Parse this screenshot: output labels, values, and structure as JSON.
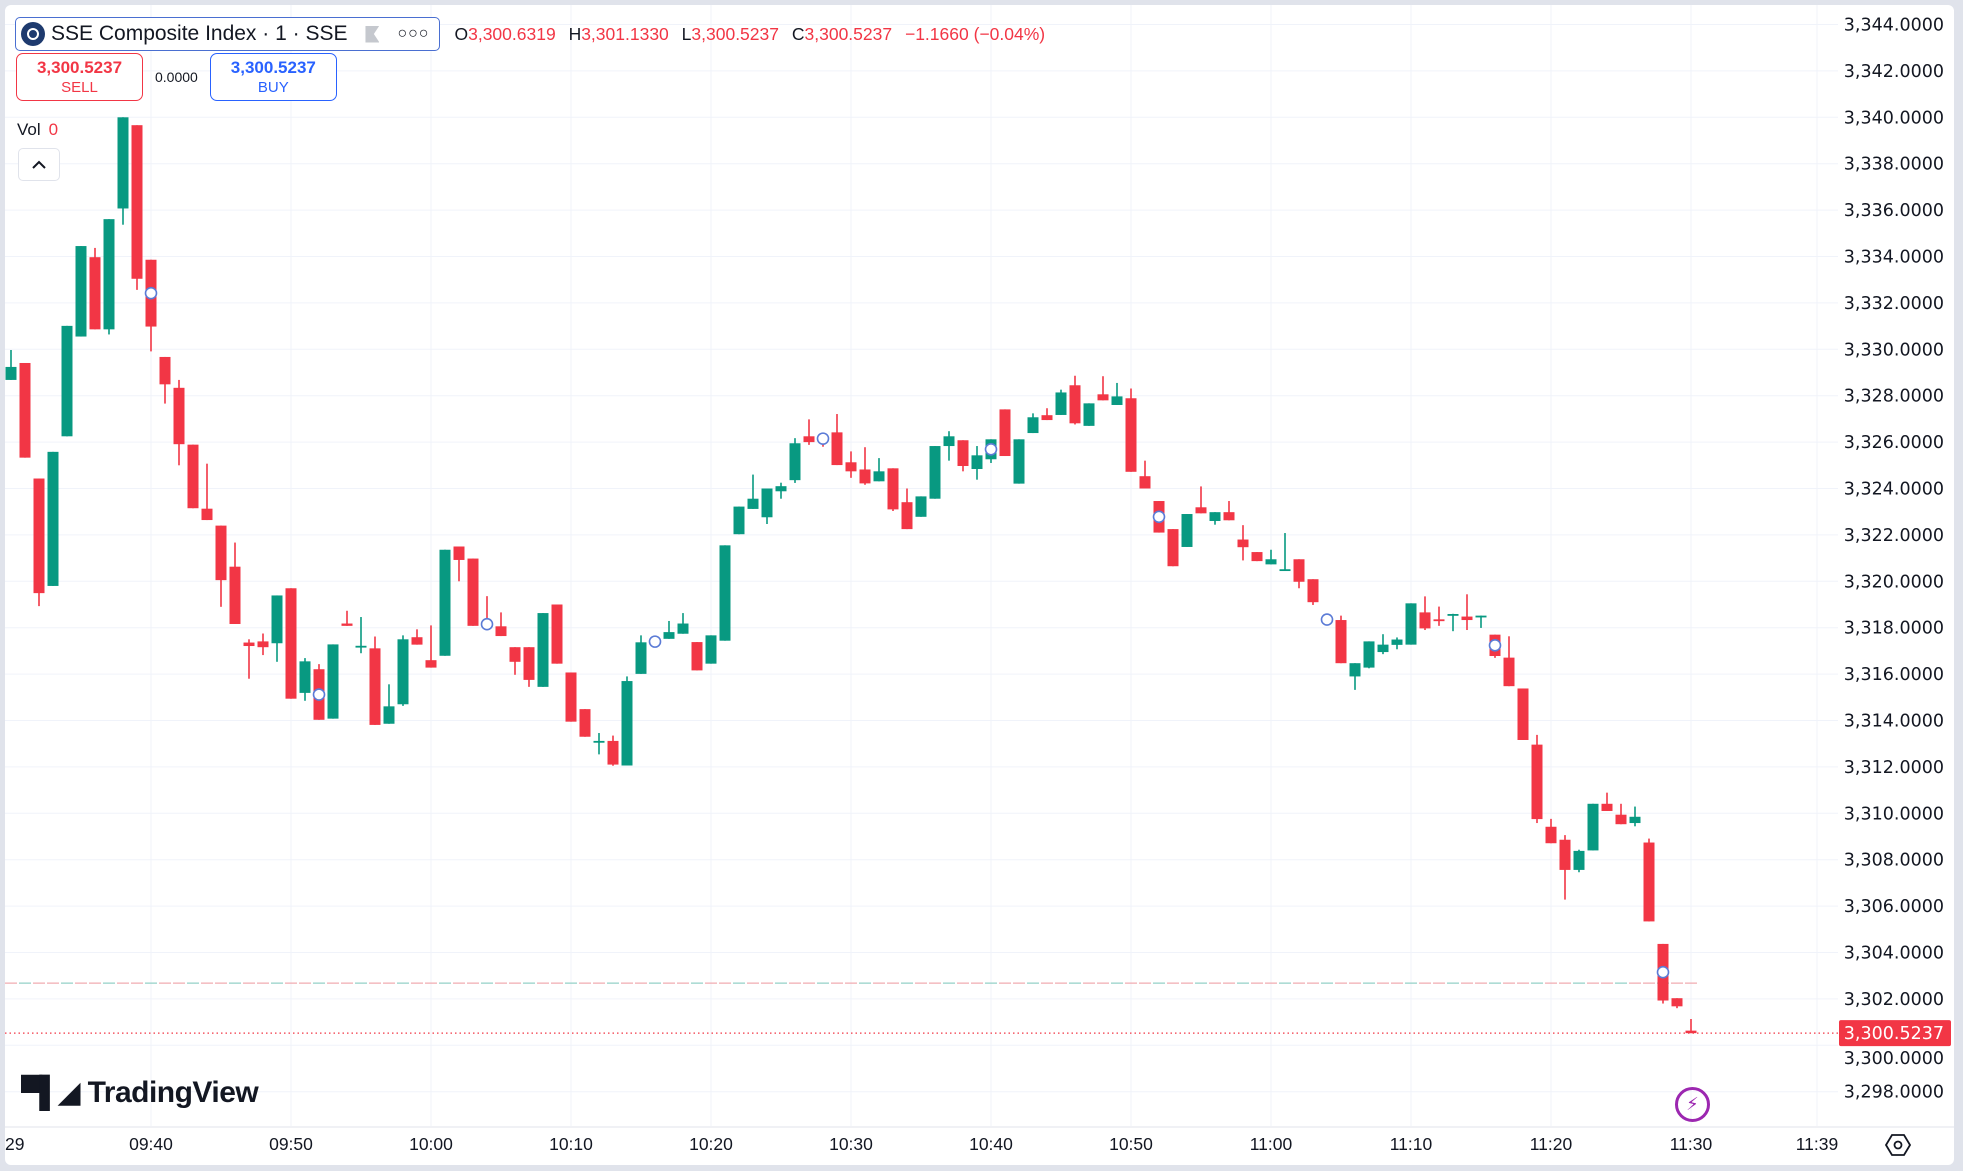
{
  "symbol": {
    "title": "SSE Composite Index · 1 · SSE",
    "logo": "sse-logo-icon",
    "flag_icon": "flag-icon",
    "more_icon": "more-dots-icon"
  },
  "ohlc": {
    "o_label": "O",
    "o": "3,300.6319",
    "h_label": "H",
    "h": "3,301.1330",
    "l_label": "L",
    "l": "3,300.5237",
    "c_label": "C",
    "c": "3,300.5237",
    "change": "−1.1660 (−0.04%)"
  },
  "trade": {
    "sell_price": "3,300.5237",
    "sell_label": "SELL",
    "spread": "0.0000",
    "buy_price": "3,300.5237",
    "buy_label": "BUY"
  },
  "volume": {
    "label": "Vol",
    "value": "0"
  },
  "collapse_icon": "chevron-up-icon",
  "brand": {
    "mark": "17",
    "name": "TradingView"
  },
  "colors": {
    "up": "#089981",
    "down": "#f23645",
    "accent": "#2962ff",
    "marker": "#5b7bd6",
    "lightning": "#9c27b0"
  },
  "chart_data": {
    "type": "candlestick",
    "interval": "1",
    "ylim": [
      3297,
      3345
    ],
    "yticks": [
      "3,344.0000",
      "3,342.0000",
      "3,340.0000",
      "3,338.0000",
      "3,336.0000",
      "3,334.0000",
      "3,332.0000",
      "3,330.0000",
      "3,328.0000",
      "3,326.0000",
      "3,324.0000",
      "3,322.0000",
      "3,320.0000",
      "3,318.0000",
      "3,316.0000",
      "3,314.0000",
      "3,312.0000",
      "3,310.0000",
      "3,308.0000",
      "3,306.0000",
      "3,304.0000",
      "3,302.0000",
      "3,300.0000",
      "3,298.0000"
    ],
    "xticks": [
      "29",
      "09:40",
      "09:50",
      "10:00",
      "10:10",
      "10:20",
      "10:30",
      "10:40",
      "10:50",
      "11:00",
      "11:10",
      "11:20",
      "11:30",
      "11:39"
    ],
    "last_price": "3,300.5237",
    "reference_line": 3302.68,
    "markers": [
      "09:40",
      "09:52",
      "10:04",
      "10:16",
      "10:28",
      "10:40",
      "10:52",
      "11:04",
      "11:16",
      "11:28"
    ],
    "candles": [
      [
        "09:30",
        3328.68,
        3329.97,
        3328.68,
        3329.24
      ],
      [
        "09:31",
        3329.41,
        3329.41,
        3325.33,
        3325.33
      ],
      [
        "09:32",
        3324.43,
        3324.43,
        3318.93,
        3319.49
      ],
      [
        "09:33",
        3319.8,
        3325.58,
        3319.8,
        3325.58
      ],
      [
        "09:34",
        3326.25,
        3331.01,
        3326.25,
        3331.01
      ],
      [
        "09:35",
        3330.55,
        3334.45,
        3330.55,
        3334.45
      ],
      [
        "09:36",
        3333.97,
        3334.37,
        3330.86,
        3330.86
      ],
      [
        "09:37",
        3330.86,
        3335.61,
        3330.64,
        3335.61
      ],
      [
        "09:38",
        3336.07,
        3340.0,
        3335.37,
        3340.0
      ],
      [
        "09:39",
        3339.66,
        3339.66,
        3332.56,
        3333.04
      ],
      [
        "09:40",
        3333.86,
        3333.86,
        3329.91,
        3330.98
      ],
      [
        "09:41",
        3329.67,
        3329.67,
        3327.66,
        3328.49
      ],
      [
        "09:42",
        3328.34,
        3328.68,
        3325.0,
        3325.91
      ],
      [
        "09:43",
        3325.89,
        3325.89,
        3323.15,
        3323.15
      ],
      [
        "09:44",
        3323.13,
        3325.07,
        3322.64,
        3322.64
      ],
      [
        "09:45",
        3322.4,
        3322.4,
        3318.9,
        3320.05
      ],
      [
        "09:46",
        3320.63,
        3321.67,
        3318.16,
        3318.16
      ],
      [
        "09:47",
        3317.36,
        3317.5,
        3315.8,
        3317.21
      ],
      [
        "09:48",
        3317.41,
        3317.75,
        3316.82,
        3317.16
      ],
      [
        "09:49",
        3317.33,
        3319.39,
        3316.53,
        3319.39
      ],
      [
        "09:50",
        3319.7,
        3319.7,
        3314.94,
        3314.94
      ],
      [
        "09:51",
        3315.19,
        3316.69,
        3314.85,
        3316.55
      ],
      [
        "09:52",
        3316.21,
        3316.43,
        3314.03,
        3314.03
      ],
      [
        "09:53",
        3314.08,
        3317.28,
        3314.08,
        3317.28
      ],
      [
        "09:54",
        3318.18,
        3318.73,
        3318.08,
        3318.08
      ],
      [
        "09:55",
        3317.18,
        3318.46,
        3316.9,
        3317.22
      ],
      [
        "09:56",
        3317.11,
        3317.62,
        3313.81,
        3313.81
      ],
      [
        "09:57",
        3313.86,
        3315.56,
        3313.86,
        3314.61
      ],
      [
        "09:58",
        3314.7,
        3317.67,
        3314.63,
        3317.5
      ],
      [
        "09:59",
        3317.59,
        3317.93,
        3317.27,
        3317.27
      ],
      [
        "10:00",
        3316.6,
        3318.1,
        3316.28,
        3316.28
      ],
      [
        "10:01",
        3316.79,
        3321.36,
        3316.79,
        3321.36
      ],
      [
        "10:02",
        3321.5,
        3321.5,
        3320.0,
        3320.92
      ],
      [
        "10:03",
        3320.98,
        3320.98,
        3318.08,
        3318.08
      ],
      [
        "10:04",
        3318.2,
        3319.36,
        3318.0,
        3318.1
      ],
      [
        "10:05",
        3318.06,
        3318.66,
        3317.64,
        3317.64
      ],
      [
        "10:06",
        3317.16,
        3317.16,
        3315.97,
        3316.53
      ],
      [
        "10:07",
        3317.16,
        3317.16,
        3315.45,
        3315.75
      ],
      [
        "10:08",
        3315.45,
        3318.63,
        3315.45,
        3318.63
      ],
      [
        "10:09",
        3319.0,
        3319.0,
        3316.45,
        3316.45
      ],
      [
        "10:10",
        3316.07,
        3316.07,
        3313.95,
        3313.95
      ],
      [
        "10:11",
        3314.49,
        3314.49,
        3313.3,
        3313.3
      ],
      [
        "10:12",
        3313.08,
        3313.46,
        3312.54,
        3313.12
      ],
      [
        "10:13",
        3313.12,
        3313.35,
        3312.05,
        3312.1
      ],
      [
        "10:14",
        3312.06,
        3315.9,
        3312.06,
        3315.7
      ],
      [
        "10:15",
        3316.01,
        3317.67,
        3316.01,
        3317.37
      ],
      [
        "10:16",
        3317.35,
        3317.5,
        3317.3,
        3317.45
      ],
      [
        "10:17",
        3317.52,
        3318.29,
        3317.52,
        3317.81
      ],
      [
        "10:18",
        3317.74,
        3318.63,
        3317.74,
        3318.18
      ],
      [
        "10:19",
        3317.38,
        3317.38,
        3316.16,
        3316.16
      ],
      [
        "10:20",
        3316.45,
        3317.67,
        3316.45,
        3317.67
      ],
      [
        "10:21",
        3317.44,
        3321.55,
        3317.44,
        3321.55
      ],
      [
        "10:22",
        3322.03,
        3323.22,
        3322.03,
        3323.22
      ],
      [
        "10:23",
        3323.12,
        3324.6,
        3323.12,
        3323.56
      ],
      [
        "10:24",
        3322.76,
        3324.0,
        3322.47,
        3324.0
      ],
      [
        "10:25",
        3323.88,
        3324.25,
        3323.56,
        3324.1
      ],
      [
        "10:26",
        3324.36,
        3326.17,
        3324.24,
        3325.95
      ],
      [
        "10:27",
        3326.25,
        3326.98,
        3325.88,
        3326.0
      ],
      [
        "10:28",
        3326.2,
        3326.3,
        3325.8,
        3326.1
      ],
      [
        "10:29",
        3326.42,
        3327.21,
        3325.01,
        3325.01
      ],
      [
        "10:30",
        3325.13,
        3325.6,
        3324.46,
        3324.74
      ],
      [
        "10:31",
        3324.82,
        3325.78,
        3324.16,
        3324.22
      ],
      [
        "10:32",
        3324.31,
        3325.31,
        3324.31,
        3324.74
      ],
      [
        "10:33",
        3324.87,
        3324.87,
        3323.03,
        3323.1
      ],
      [
        "10:34",
        3323.41,
        3324.0,
        3322.25,
        3322.25
      ],
      [
        "10:35",
        3322.78,
        3323.66,
        3322.78,
        3323.66
      ],
      [
        "10:36",
        3323.56,
        3325.83,
        3323.56,
        3325.83
      ],
      [
        "10:37",
        3325.83,
        3326.47,
        3325.2,
        3326.25
      ],
      [
        "10:38",
        3326.08,
        3326.08,
        3324.74,
        3324.97
      ],
      [
        "10:39",
        3324.84,
        3325.83,
        3324.38,
        3325.43
      ],
      [
        "10:40",
        3325.26,
        3326.12,
        3325.1,
        3326.12
      ],
      [
        "10:41",
        3327.41,
        3327.41,
        3325.4,
        3325.4
      ],
      [
        "10:42",
        3324.21,
        3326.12,
        3324.21,
        3326.12
      ],
      [
        "10:43",
        3326.39,
        3327.24,
        3326.39,
        3327.07
      ],
      [
        "10:44",
        3327.16,
        3327.46,
        3326.95,
        3326.95
      ],
      [
        "10:45",
        3327.17,
        3328.26,
        3327.17,
        3328.14
      ],
      [
        "10:46",
        3328.45,
        3328.86,
        3326.76,
        3326.81
      ],
      [
        "10:47",
        3326.7,
        3327.67,
        3326.7,
        3327.67
      ],
      [
        "10:48",
        3328.06,
        3328.84,
        3327.8,
        3327.8
      ],
      [
        "10:49",
        3327.6,
        3328.55,
        3327.6,
        3327.97
      ],
      [
        "10:50",
        3327.89,
        3328.31,
        3324.72,
        3324.72
      ],
      [
        "10:51",
        3324.53,
        3325.2,
        3324.0,
        3324.0
      ],
      [
        "10:52",
        3323.46,
        3323.46,
        3322.1,
        3322.1
      ],
      [
        "10:53",
        3322.25,
        3322.25,
        3320.65,
        3320.65
      ],
      [
        "10:54",
        3321.48,
        3322.9,
        3321.48,
        3322.9
      ],
      [
        "10:55",
        3323.19,
        3324.09,
        3322.93,
        3322.93
      ],
      [
        "10:56",
        3322.6,
        3322.98,
        3322.44,
        3322.98
      ],
      [
        "10:57",
        3322.98,
        3323.46,
        3322.63,
        3322.63
      ],
      [
        "10:58",
        3321.8,
        3322.42,
        3320.9,
        3321.47
      ],
      [
        "10:59",
        3321.26,
        3321.26,
        3320.87,
        3320.87
      ],
      [
        "11:00",
        3320.73,
        3321.36,
        3320.73,
        3320.95
      ],
      [
        "11:01",
        3320.5,
        3322.08,
        3320.5,
        3320.52
      ],
      [
        "11:02",
        3320.95,
        3320.95,
        3319.7,
        3319.98
      ],
      [
        "11:03",
        3320.09,
        3320.09,
        3318.98,
        3319.1
      ],
      [
        "11:04",
        3318.4,
        3318.45,
        3318.2,
        3318.3
      ],
      [
        "11:05",
        3318.33,
        3318.52,
        3316.47,
        3316.47
      ],
      [
        "11:06",
        3315.9,
        3316.47,
        3315.32,
        3316.47
      ],
      [
        "11:07",
        3316.28,
        3317.41,
        3316.25,
        3317.41
      ],
      [
        "11:08",
        3316.95,
        3317.72,
        3316.86,
        3317.27
      ],
      [
        "11:09",
        3317.26,
        3317.58,
        3317.07,
        3317.49
      ],
      [
        "11:10",
        3317.27,
        3319.05,
        3317.27,
        3319.05
      ],
      [
        "11:11",
        3318.66,
        3319.35,
        3317.9,
        3317.97
      ],
      [
        "11:12",
        3318.36,
        3318.91,
        3318.08,
        3318.33
      ],
      [
        "11:13",
        3318.56,
        3318.6,
        3317.85,
        3318.59
      ],
      [
        "11:14",
        3318.48,
        3319.44,
        3317.9,
        3318.33
      ],
      [
        "11:15",
        3318.5,
        3318.52,
        3317.99,
        3318.52
      ],
      [
        "11:16",
        3317.7,
        3317.7,
        3316.7,
        3316.78
      ],
      [
        "11:17",
        3316.71,
        3317.63,
        3315.48,
        3315.48
      ],
      [
        "11:18",
        3315.38,
        3315.38,
        3313.16,
        3313.16
      ],
      [
        "11:19",
        3312.96,
        3313.38,
        3309.58,
        3309.75
      ],
      [
        "11:20",
        3309.42,
        3309.76,
        3308.71,
        3308.71
      ],
      [
        "11:21",
        3308.86,
        3309.06,
        3306.28,
        3307.56
      ],
      [
        "11:22",
        3307.56,
        3308.43,
        3307.46,
        3308.38
      ],
      [
        "11:23",
        3308.4,
        3310.41,
        3308.4,
        3310.41
      ],
      [
        "11:24",
        3310.41,
        3310.89,
        3310.1,
        3310.1
      ],
      [
        "11:25",
        3309.94,
        3310.41,
        3309.53,
        3309.53
      ],
      [
        "11:26",
        3309.58,
        3310.29,
        3309.44,
        3309.85
      ],
      [
        "11:27",
        3308.74,
        3308.91,
        3305.34,
        3305.34
      ],
      [
        "11:28",
        3304.37,
        3304.37,
        3301.8,
        3301.93
      ],
      [
        "11:29",
        3302.03,
        3302.03,
        3301.6,
        3301.68
      ],
      [
        "11:30",
        3300.6319,
        3301.133,
        3300.5237,
        3300.5237
      ]
    ]
  },
  "icons": {
    "lightning": "lightning-icon",
    "settings": "settings-hex-icon"
  }
}
